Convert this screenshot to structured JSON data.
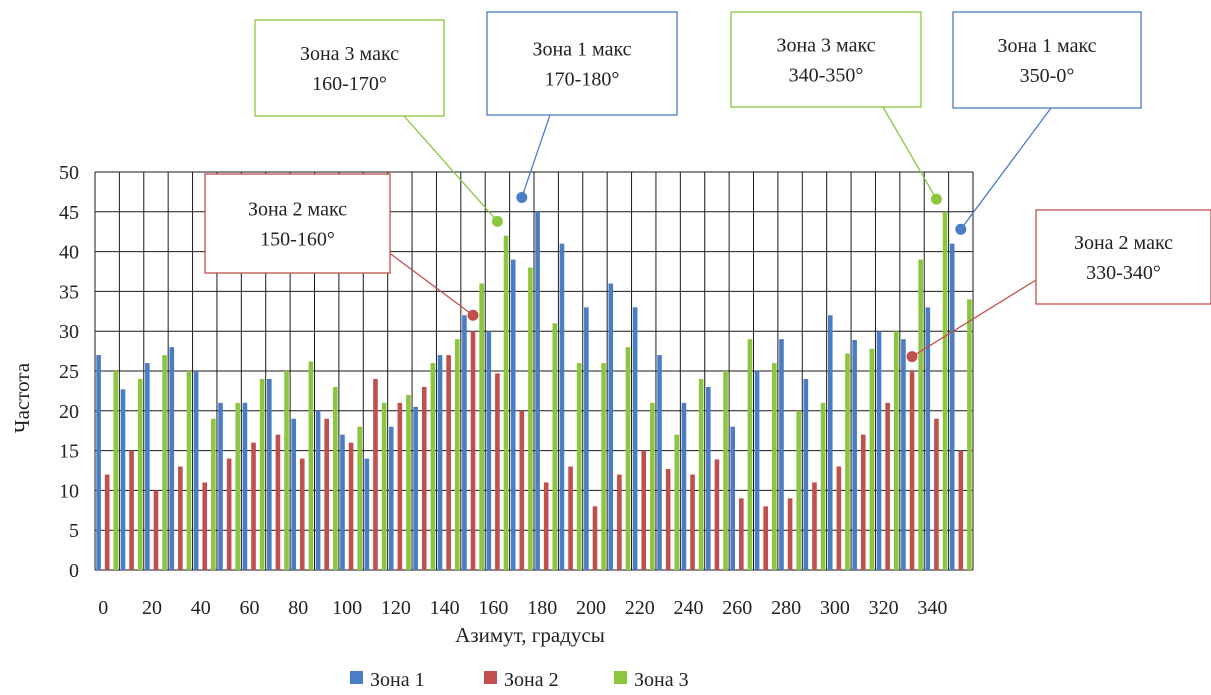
{
  "chart_data": {
    "type": "bar",
    "xlabel": "Азимут, градусы",
    "ylabel": "Частота",
    "ylim": [
      0,
      50
    ],
    "y_ticks": [
      0,
      5,
      10,
      15,
      20,
      25,
      30,
      35,
      40,
      45,
      50
    ],
    "grid": true,
    "legend_position": "bottom",
    "categories": [
      0,
      10,
      20,
      30,
      40,
      50,
      60,
      70,
      80,
      90,
      100,
      110,
      120,
      130,
      140,
      150,
      160,
      170,
      180,
      190,
      200,
      210,
      220,
      230,
      240,
      250,
      260,
      270,
      280,
      290,
      300,
      310,
      320,
      330,
      340,
      350
    ],
    "x_tick_labels": [
      "0",
      "20",
      "40",
      "60",
      "80",
      "100",
      "120",
      "140",
      "160",
      "180",
      "200",
      "220",
      "240",
      "260",
      "280",
      "300",
      "320",
      "340"
    ],
    "series": [
      {
        "name": "Зона 1",
        "color": "#4a7ec4",
        "values": [
          27,
          22.7,
          26,
          28,
          25,
          21,
          21,
          24,
          19,
          20,
          17,
          14,
          18,
          20.5,
          27,
          32,
          30,
          39,
          45,
          41,
          33,
          36,
          33,
          27,
          21,
          23,
          18,
          25,
          29,
          24,
          32,
          28.9,
          30,
          29,
          33,
          41
        ]
      },
      {
        "name": "Зона 2",
        "color": "#c0504d",
        "values": [
          12,
          15,
          10,
          13,
          11,
          14,
          16,
          17,
          14,
          19,
          16,
          24,
          21,
          23,
          27,
          30,
          24.7,
          20,
          11,
          13,
          8,
          12,
          15,
          12.7,
          12,
          13.9,
          9,
          8,
          9,
          11,
          13,
          17,
          21,
          25,
          19,
          15
        ]
      },
      {
        "name": "Зона 3",
        "color": "#8cc63f",
        "values": [
          25,
          24,
          27,
          25,
          19,
          21,
          24,
          25,
          26.2,
          23,
          18,
          21,
          22,
          26,
          29,
          36,
          42,
          38,
          31,
          26,
          26,
          28,
          21,
          17,
          24,
          25,
          29,
          26,
          20,
          21,
          27.2,
          27.8,
          30,
          39,
          45,
          34
        ]
      }
    ],
    "annotations": [
      {
        "lines": [
          "Зона 3 макс",
          "160-170°"
        ],
        "border_color": "#8cc63f",
        "dot_color": "#8cc63f",
        "point": {
          "x": 160,
          "y": 43.8
        }
      },
      {
        "lines": [
          "Зона 1 макс",
          "170-180°"
        ],
        "border_color": "#4a7ec4",
        "dot_color": "#4a7ec4",
        "point": {
          "x": 170,
          "y": 46.8
        }
      },
      {
        "lines": [
          "Зона 3 макс",
          "340-350°"
        ],
        "border_color": "#8cc63f",
        "dot_color": "#8cc63f",
        "point": {
          "x": 340,
          "y": 46.6
        }
      },
      {
        "lines": [
          "Зона 1 макс",
          "350-0°"
        ],
        "border_color": "#4a7ec4",
        "dot_color": "#4a7ec4",
        "point": {
          "x": 350,
          "y": 42.8
        }
      },
      {
        "lines": [
          "Зона 2 макс",
          "150-160°"
        ],
        "border_color": "#c0504d",
        "dot_color": "#c0504d",
        "point": {
          "x": 150,
          "y": 32
        }
      },
      {
        "lines": [
          "Зона 2 макс",
          "330-340°"
        ],
        "border_color": "#c0504d",
        "dot_color": "#c0504d",
        "point": {
          "x": 330,
          "y": 26.8
        }
      }
    ]
  }
}
